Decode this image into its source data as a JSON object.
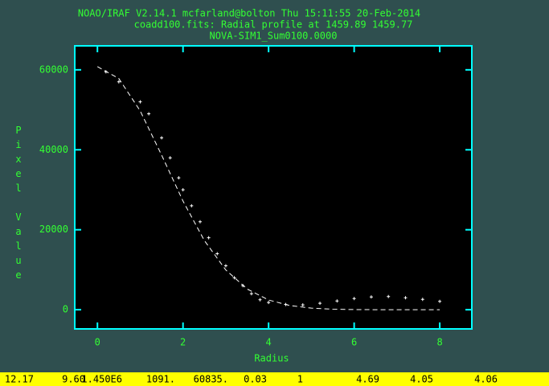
{
  "chart_data": {
    "type": "scatter",
    "title": [
      "NOAO/IRAF V2.14.1 mcfarland@bolton Thu 15:11:55 20-Feb-2014",
      "coadd100.fits: Radial profile at 1459.89 1459.77",
      "NOVA-SIM1_Sum0100.0000"
    ],
    "x_label": "Radius",
    "y_label": "Pixel Value",
    "xlim": [
      -0.53,
      8.75
    ],
    "xticks": [
      0,
      2,
      4,
      6,
      8
    ],
    "ylim": [
      -4800,
      66000
    ],
    "yticks": [
      0,
      20000,
      40000,
      60000
    ],
    "series": [
      {
        "type": "scatter",
        "color": "#ffffff",
        "x": [
          0.2,
          0.5,
          1.0,
          1.2,
          1.5,
          1.7,
          1.9,
          2.0,
          2.2,
          2.4,
          2.6,
          2.8,
          3.0,
          3.2,
          3.4,
          3.6,
          3.8,
          4.0,
          4.4,
          4.8,
          5.2,
          5.6,
          6.0,
          6.4,
          6.8,
          7.2,
          7.6,
          8.0
        ],
        "values": [
          59500,
          57000,
          52000,
          49000,
          43000,
          38000,
          33000,
          30000,
          26000,
          22000,
          18000,
          14000,
          11000,
          8000,
          6000,
          4000,
          2500,
          1800,
          1300,
          1200,
          1600,
          2200,
          2800,
          3200,
          3300,
          3000,
          2600,
          2100
        ]
      },
      {
        "type": "line",
        "color": "#ffffff",
        "dashed": true,
        "x": [
          0,
          0.5,
          1.0,
          1.5,
          2.0,
          2.5,
          3.0,
          3.5,
          4.0,
          4.5,
          5.0,
          5.5,
          6.0,
          6.5,
          7.0,
          7.5,
          8.0
        ],
        "values": [
          60800,
          57820,
          49720,
          38670,
          27180,
          17280,
          9940,
          5170,
          2430,
          1040,
          400,
          130,
          40,
          10,
          0,
          0,
          0
        ]
      }
    ],
    "status_bar": [
      "12.17",
      "9.60",
      "1.450E6",
      "1091.",
      "60835.",
      "0.03",
      "1",
      "4.69",
      "4.05",
      "4.06"
    ]
  }
}
